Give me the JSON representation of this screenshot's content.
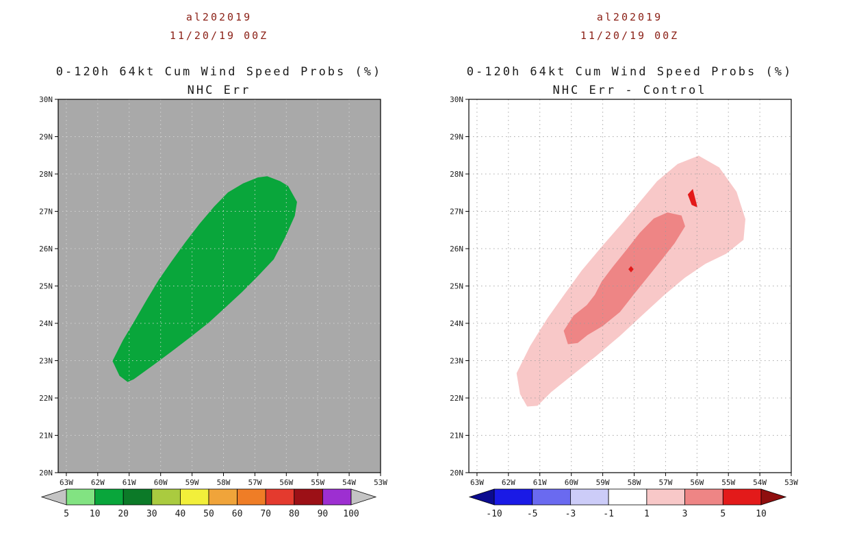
{
  "page": {
    "background": "#ffffff"
  },
  "chart_data": {
    "type": "heatmap",
    "description": "Two-panel tropical cyclone cumulative wind speed probability maps with colorbars",
    "panels": [
      {
        "header": {
          "storm_id": "al202019",
          "datetime": "11/20/19 00Z",
          "title": "0-120h 64kt Cum Wind Speed Probs (%)",
          "subtitle": "NHC Err"
        },
        "map": {
          "lon_range": [
            63.26,
            53.0
          ],
          "lat_range": [
            20,
            30
          ],
          "background": "#a9a9a9",
          "grid_color": "#dcdcdc",
          "lat_ticks": [
            "20N",
            "21N",
            "22N",
            "23N",
            "24N",
            "25N",
            "26N",
            "27N",
            "28N",
            "29N",
            "30N"
          ],
          "lon_ticks": [
            "63W",
            "62W",
            "61W",
            "60W",
            "59W",
            "58W",
            "57W",
            "56W",
            "55W",
            "54W",
            "53W"
          ]
        },
        "contours": [
          {
            "level": "10-20",
            "color": "#09a63b",
            "points": [
              [
                61.3,
                22.6
              ],
              [
                61.52,
                22.99
              ],
              [
                61.19,
                23.54
              ],
              [
                60.8,
                24.09
              ],
              [
                60.43,
                24.63
              ],
              [
                60.05,
                25.16
              ],
              [
                59.63,
                25.67
              ],
              [
                59.2,
                26.17
              ],
              [
                58.75,
                26.66
              ],
              [
                58.29,
                27.12
              ],
              [
                57.85,
                27.5
              ],
              [
                57.37,
                27.74
              ],
              [
                56.9,
                27.9
              ],
              [
                56.61,
                27.93
              ],
              [
                56.2,
                27.8
              ],
              [
                55.95,
                27.67
              ],
              [
                55.67,
                27.25
              ],
              [
                55.74,
                26.88
              ],
              [
                56.05,
                26.3
              ],
              [
                56.41,
                25.72
              ],
              [
                56.9,
                25.28
              ],
              [
                57.42,
                24.84
              ],
              [
                57.95,
                24.43
              ],
              [
                58.48,
                24.02
              ],
              [
                59.07,
                23.63
              ],
              [
                59.66,
                23.25
              ],
              [
                60.25,
                22.88
              ],
              [
                60.86,
                22.51
              ],
              [
                61.05,
                22.44
              ]
            ]
          }
        ],
        "colorbar": {
          "tick_labels": [
            "5",
            "10",
            "20",
            "30",
            "40",
            "50",
            "60",
            "70",
            "80",
            "90",
            "100"
          ],
          "segment_colors": [
            "#82e382",
            "#09a63b",
            "#0c7a28",
            "#aacb3f",
            "#f2ef3a",
            "#f0a43a",
            "#ef7d26",
            "#e43a2e",
            "#9c1016",
            "#9d2fd1"
          ],
          "arrow_left_color": "#c4c4c4",
          "arrow_right_color": "#c4c4c4"
        }
      },
      {
        "header": {
          "storm_id": "al202019",
          "datetime": "11/20/19 00Z",
          "title": "0-120h 64kt Cum Wind Speed Probs (%)",
          "subtitle": "NHC Err - Control"
        },
        "map": {
          "lon_range": [
            63.26,
            53.0
          ],
          "lat_range": [
            20,
            30
          ],
          "background": "#ffffff",
          "grid_color": "#9a9a9a",
          "lat_ticks": [
            "20N",
            "21N",
            "22N",
            "23N",
            "24N",
            "25N",
            "26N",
            "27N",
            "28N",
            "29N",
            "30N"
          ],
          "lon_ticks": [
            "63W",
            "62W",
            "61W",
            "60W",
            "59W",
            "58W",
            "57W",
            "56W",
            "55W",
            "54W",
            "53W"
          ]
        },
        "contours": [
          {
            "level": "1-3",
            "color": "#f8c8c8",
            "points": [
              [
                61.62,
                22.11
              ],
              [
                61.73,
                22.66
              ],
              [
                61.3,
                23.39
              ],
              [
                60.75,
                24.13
              ],
              [
                60.21,
                24.77
              ],
              [
                59.66,
                25.41
              ],
              [
                59.01,
                26.06
              ],
              [
                58.35,
                26.7
              ],
              [
                57.81,
                27.25
              ],
              [
                57.26,
                27.8
              ],
              [
                56.61,
                28.26
              ],
              [
                55.95,
                28.48
              ],
              [
                55.3,
                28.17
              ],
              [
                54.75,
                27.52
              ],
              [
                54.47,
                26.79
              ],
              [
                54.53,
                26.24
              ],
              [
                55.08,
                25.87
              ],
              [
                55.74,
                25.6
              ],
              [
                56.39,
                25.23
              ],
              [
                57.04,
                24.77
              ],
              [
                57.7,
                24.26
              ],
              [
                58.46,
                23.67
              ],
              [
                59.23,
                23.12
              ],
              [
                59.99,
                22.61
              ],
              [
                60.64,
                22.17
              ],
              [
                61.08,
                21.8
              ],
              [
                61.4,
                21.78
              ]
            ]
          },
          {
            "level": "3-5",
            "color": "#ee8585",
            "points": [
              [
                60.1,
                23.45
              ],
              [
                60.23,
                23.8
              ],
              [
                59.92,
                24.2
              ],
              [
                59.5,
                24.48
              ],
              [
                59.24,
                24.76
              ],
              [
                59.02,
                25.12
              ],
              [
                58.68,
                25.5
              ],
              [
                58.24,
                25.96
              ],
              [
                57.81,
                26.42
              ],
              [
                57.37,
                26.8
              ],
              [
                56.94,
                26.96
              ],
              [
                56.5,
                26.88
              ],
              [
                56.39,
                26.6
              ],
              [
                56.72,
                26.15
              ],
              [
                57.15,
                25.69
              ],
              [
                57.59,
                25.23
              ],
              [
                58.03,
                24.77
              ],
              [
                58.46,
                24.31
              ],
              [
                59.0,
                23.94
              ],
              [
                59.48,
                23.7
              ],
              [
                59.8,
                23.48
              ]
            ]
          },
          {
            "level": "5-10",
            "color": "#e31a1a",
            "points": [
              [
                56.14,
                27.58
              ],
              [
                56.0,
                27.12
              ],
              [
                56.16,
                27.18
              ],
              [
                56.28,
                27.45
              ]
            ]
          },
          {
            "level": "5-10",
            "color": "#e31a1a",
            "points": [
              [
                58.1,
                25.52
              ],
              [
                58.03,
                25.45
              ],
              [
                58.1,
                25.38
              ],
              [
                58.17,
                25.45
              ]
            ]
          }
        ],
        "colorbar": {
          "tick_labels": [
            "-10",
            "-5",
            "-3",
            "-1",
            "1",
            "3",
            "5",
            "10"
          ],
          "segment_colors": [
            "#1a1ae6",
            "#6a6af0",
            "#ccccf8",
            "#ffffff",
            "#f8c8c8",
            "#ee8585",
            "#e31a1a"
          ],
          "arrow_left_color": "#0b0b8f",
          "arrow_right_color": "#8f0f0f"
        }
      }
    ]
  }
}
